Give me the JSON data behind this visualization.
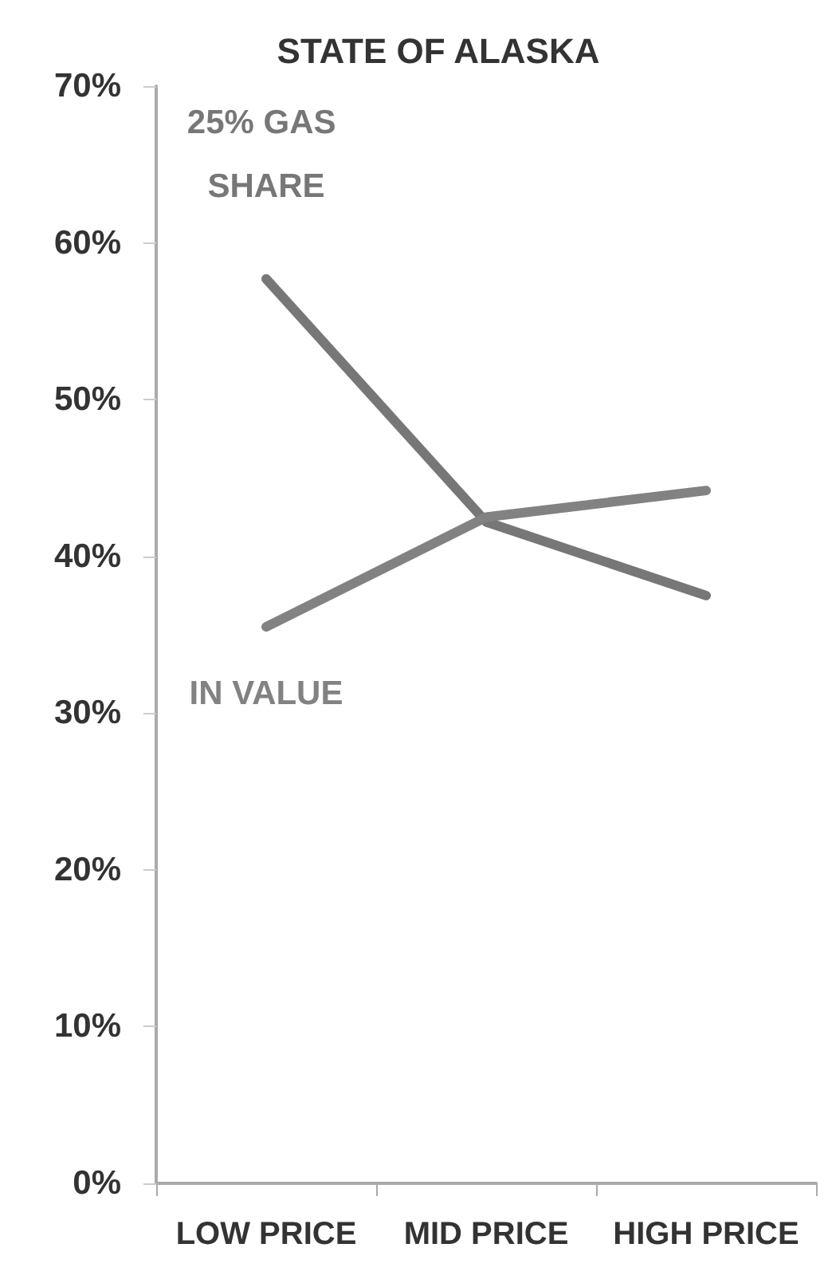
{
  "chart_data": {
    "type": "line",
    "title": "STATE OF ALASKA",
    "categories": [
      "LOW PRICE",
      "MID PRICE",
      "HIGH PRICE"
    ],
    "series": [
      {
        "name": "25% GAS SHARE",
        "color": "#777777",
        "values": [
          57.7,
          42.2,
          37.5
        ]
      },
      {
        "name": "IN VALUE",
        "color": "#828282",
        "values": [
          35.5,
          42.5,
          44.2
        ]
      }
    ],
    "ylim": [
      0,
      70
    ],
    "yticks": [
      {
        "value": 0,
        "label": "0%"
      },
      {
        "value": 10,
        "label": "10%"
      },
      {
        "value": 20,
        "label": "20%"
      },
      {
        "value": 30,
        "label": "30%"
      },
      {
        "value": 40,
        "label": "40%"
      },
      {
        "value": 50,
        "label": "50%"
      },
      {
        "value": 60,
        "label": "60%"
      },
      {
        "value": 70,
        "label": "70%"
      }
    ],
    "grid": false,
    "legend": false,
    "marker": "none",
    "line_style": "solid"
  }
}
